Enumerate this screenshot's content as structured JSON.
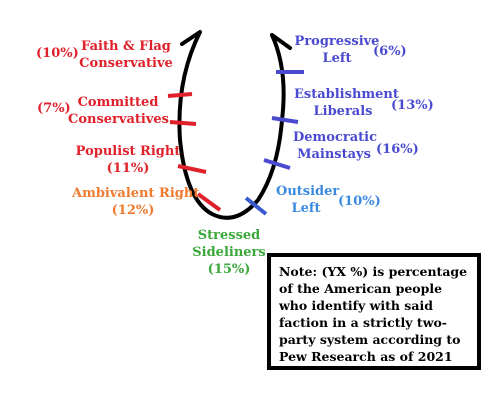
{
  "factions": [
    {
      "name_l1": "Faith & Flag",
      "name_l2": "Conservative",
      "pct": "(10%)",
      "color": "#e0202a"
    },
    {
      "name_l1": "Committed",
      "name_l2": "Conservatives",
      "pct": "(7%)",
      "color": "#e0202a"
    },
    {
      "name_l1": "Populist Right",
      "pct": "(11%)",
      "color": "#e0202a"
    },
    {
      "name_l1": "Ambivalent Right",
      "pct": "(12%)",
      "color": "#f07a30"
    },
    {
      "name_l1": "Stressed",
      "name_l2": "Sideliners",
      "pct": "(15%)",
      "color": "#3aa83a"
    },
    {
      "name_l1": "Outsider",
      "name_l2": "Left",
      "pct": "(10%)",
      "color": "#3a8ae0"
    },
    {
      "name_l1": "Democratic",
      "name_l2": "Mainstays",
      "pct": "(16%)",
      "color": "#4a4ad0"
    },
    {
      "name_l1": "Establishment",
      "name_l2": "Liberals",
      "pct": "(13%)",
      "color": "#4a4ad0"
    },
    {
      "name_l1": "Progressive",
      "name_l2": "Left",
      "pct": "(6%)",
      "color": "#4a4ad0"
    }
  ],
  "note": "Note: (YX %) is percentage of the American people who identify with said faction in a strictly two-party system according to Pew Research as of 2021"
}
